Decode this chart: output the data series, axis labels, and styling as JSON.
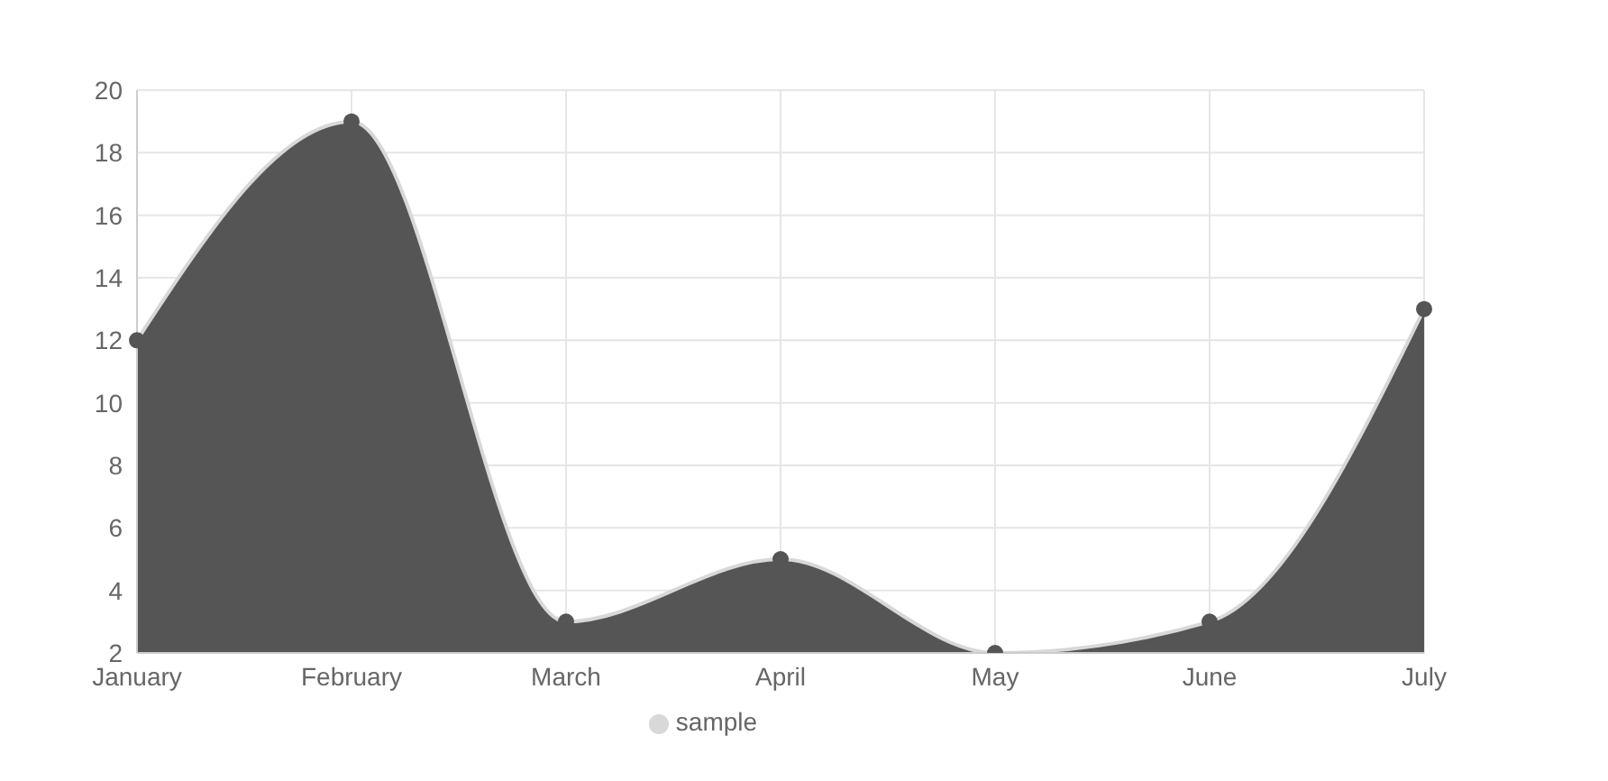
{
  "chart_data": {
    "type": "area",
    "categories": [
      "January",
      "February",
      "March",
      "April",
      "May",
      "June",
      "July"
    ],
    "series": [
      {
        "name": "sample",
        "color": "#555555",
        "values": [
          12,
          19,
          3,
          5,
          2,
          3,
          13
        ]
      }
    ],
    "ylim": [
      2,
      20
    ],
    "yticks": [
      2,
      4,
      6,
      8,
      10,
      12,
      14,
      16,
      18,
      20
    ],
    "grid": true,
    "legend": "bottom",
    "marker": "circle"
  }
}
